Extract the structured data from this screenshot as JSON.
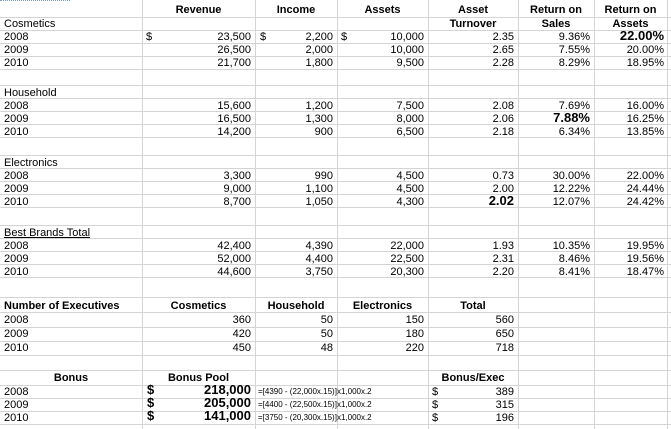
{
  "columns": {
    "revenue": "Revenue",
    "income": "Income",
    "assets": "Assets",
    "asset_turnover": [
      "Asset",
      "Turnover"
    ],
    "return_on_sales": [
      "Return on",
      "Sales"
    ],
    "return_on_assets": [
      "Return on",
      "Assets"
    ]
  },
  "sections": [
    {
      "name": "Cosmetics",
      "rows": [
        {
          "year": "2008",
          "rev_sym": "$",
          "revenue": "23,500",
          "inc_sym": "$",
          "income": "2,200",
          "ast_sym": "$",
          "assets": "10,000",
          "turnover": "2.35",
          "ros": "9.36%",
          "roa": "22.00%"
        },
        {
          "year": "2009",
          "revenue": "26,500",
          "income": "2,000",
          "assets": "10,000",
          "turnover": "2.65",
          "ros": "7.55%",
          "roa": "20.00%"
        },
        {
          "year": "2010",
          "revenue": "21,700",
          "income": "1,800",
          "assets": "9,500",
          "turnover": "2.28",
          "ros": "8.29%",
          "roa": "18.95%"
        }
      ]
    },
    {
      "name": "Household",
      "rows": [
        {
          "year": "2008",
          "revenue": "15,600",
          "income": "1,200",
          "assets": "7,500",
          "turnover": "2.08",
          "ros": "7.69%",
          "roa": "16.00%"
        },
        {
          "year": "2009",
          "revenue": "16,500",
          "income": "1,300",
          "assets": "8,000",
          "turnover": "2.06",
          "ros": "7.88%",
          "roa": "16.25%"
        },
        {
          "year": "2010",
          "revenue": "14,200",
          "income": "900",
          "assets": "6,500",
          "turnover": "2.18",
          "ros": "6.34%",
          "roa": "13.85%"
        }
      ]
    },
    {
      "name": "Electronics",
      "rows": [
        {
          "year": "2008",
          "revenue": "3,300",
          "income": "990",
          "assets": "4,500",
          "turnover": "0.73",
          "ros": "30.00%",
          "roa": "22.00%"
        },
        {
          "year": "2009",
          "revenue": "9,000",
          "income": "1,100",
          "assets": "4,500",
          "turnover": "2.00",
          "ros": "12.22%",
          "roa": "24.44%"
        },
        {
          "year": "2010",
          "revenue": "8,700",
          "income": "1,050",
          "assets": "4,300",
          "turnover": "2.02",
          "ros": "12.07%",
          "roa": "24.42%"
        }
      ]
    },
    {
      "name": "Best Brands Total",
      "rows": [
        {
          "year": "2008",
          "revenue": "42,400",
          "income": "4,390",
          "assets": "22,000",
          "turnover": "1.93",
          "ros": "10.35%",
          "roa": "19.95%"
        },
        {
          "year": "2009",
          "revenue": "52,000",
          "income": "4,400",
          "assets": "22,500",
          "turnover": "2.31",
          "ros": "8.46%",
          "roa": "19.56%"
        },
        {
          "year": "2010",
          "revenue": "44,600",
          "income": "3,750",
          "assets": "20,300",
          "turnover": "2.20",
          "ros": "8.41%",
          "roa": "18.47%"
        }
      ]
    }
  ],
  "executives": {
    "header": "Number of Executives",
    "col_cosmetics": "Cosmetics",
    "col_household": "Household",
    "col_electronics": "Electronics",
    "col_total": "Total",
    "rows": [
      {
        "year": "2008",
        "cosmetics": "360",
        "household": "50",
        "electronics": "150",
        "total": "560"
      },
      {
        "year": "2009",
        "cosmetics": "420",
        "household": "50",
        "electronics": "180",
        "total": "650"
      },
      {
        "year": "2010",
        "cosmetics": "450",
        "household": "48",
        "electronics": "220",
        "total": "718"
      }
    ]
  },
  "bonus": {
    "header": "Bonus",
    "pool_header": "Bonus Pool",
    "per_exec_header": "Bonus/Exec",
    "rows": [
      {
        "year": "2008",
        "sym": "$",
        "pool": "218,000",
        "formula": "=[4390 - (22,000x.15)]x1,000x.2",
        "exec_sym": "$",
        "per_exec": "389"
      },
      {
        "year": "2009",
        "sym": "$",
        "pool": "205,000",
        "formula": "=[4400 - (22,500x.15)]x1,000x.2",
        "exec_sym": "$",
        "per_exec": "315"
      },
      {
        "year": "2010",
        "sym": "$",
        "pool": "141,000",
        "formula": "=[3750 - (20,300x.15)]x1,000x.2",
        "exec_sym": "$",
        "per_exec": "196"
      }
    ]
  }
}
